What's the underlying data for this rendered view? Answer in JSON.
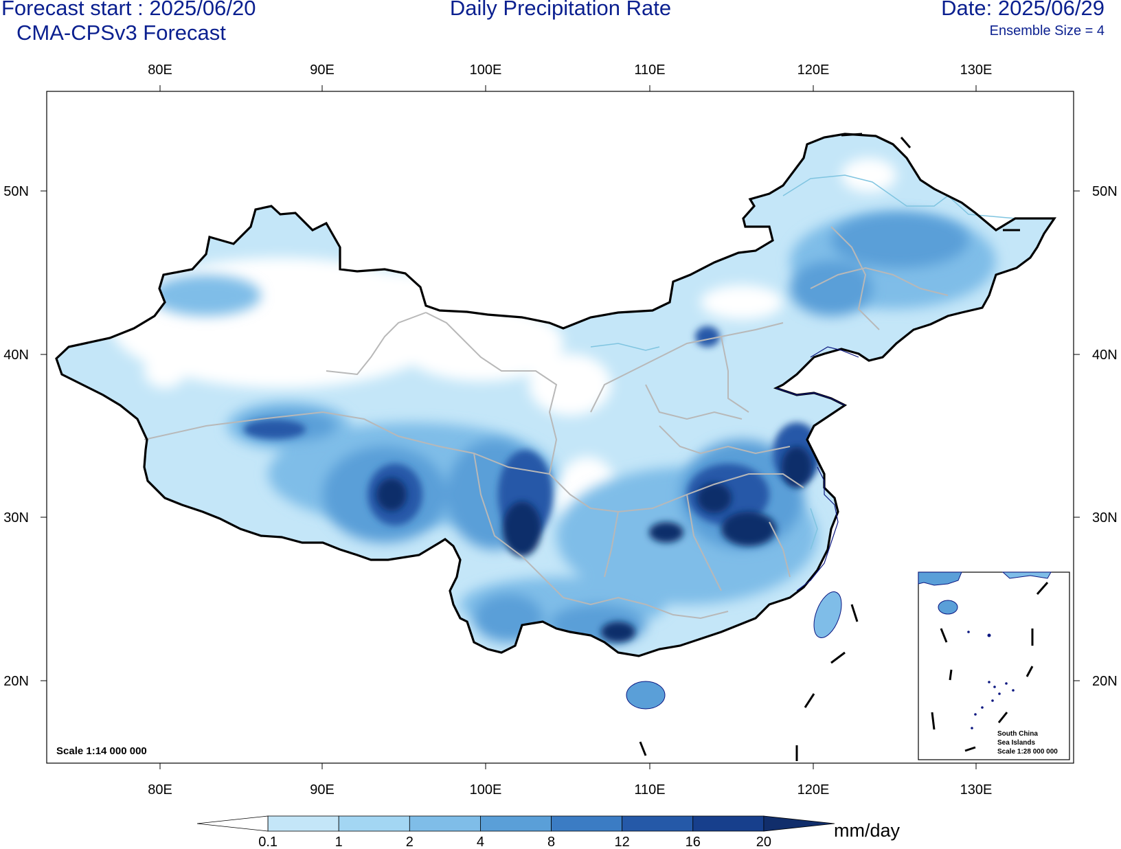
{
  "header": {
    "forecast_start": "Forecast start : 2025/06/20",
    "model": "CMA-CPSv3 Forecast",
    "title": "Daily Precipitation Rate",
    "date": "Date: 2025/06/29",
    "ensemble": "Ensemble Size = 4"
  },
  "axes": {
    "lon_ticks": [
      "80E",
      "90E",
      "100E",
      "110E",
      "120E",
      "130E"
    ],
    "lat_ticks": [
      "50N",
      "40N",
      "30N",
      "20N"
    ]
  },
  "map_scale": "Scale 1:14 000 000",
  "inset": {
    "line1": "South China",
    "line2": "Sea Islands",
    "line3": "Scale 1:28 000 000"
  },
  "colorbar": {
    "labels": [
      "0.1",
      "1",
      "2",
      "4",
      "8",
      "12",
      "16",
      "20"
    ],
    "unit": "mm/day",
    "colors": [
      "#ffffff",
      "#c4e6f8",
      "#a3d6f3",
      "#7fbde8",
      "#5a9fd8",
      "#3b7cc4",
      "#2559a8",
      "#173f8c",
      "#112e6b"
    ]
  }
}
